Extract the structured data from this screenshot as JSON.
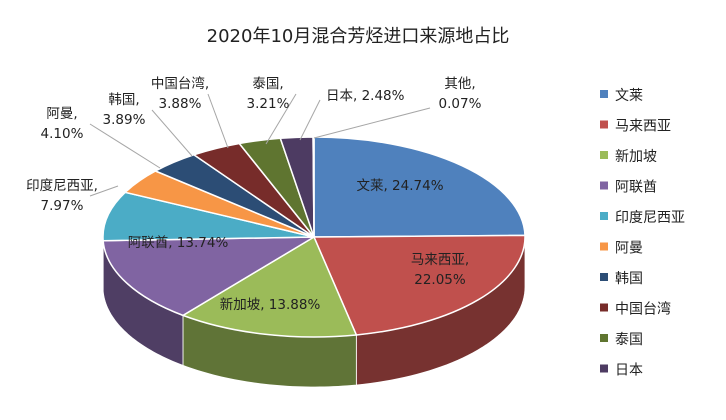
{
  "chart_data": {
    "type": "pie",
    "title": "2020年10月混合芳烃进口来源地占比",
    "categories": [
      "文莱",
      "马来西亚",
      "新加坡",
      "阿联酋",
      "印度尼西亚",
      "阿曼",
      "韩国",
      "中国台湾",
      "泰国",
      "日本",
      "其他"
    ],
    "values": [
      24.74,
      22.05,
      13.88,
      13.74,
      7.97,
      4.1,
      3.89,
      3.88,
      3.21,
      2.48,
      0.07
    ],
    "value_labels": [
      "24.74%",
      "22.05%",
      "13.88%",
      "13.74%",
      "7.97%",
      "4.10%",
      "3.89%",
      "3.88%",
      "3.21%",
      "2.48%",
      "0.07%"
    ],
    "colors": [
      "#4F81BD",
      "#C0504D",
      "#9BBB59",
      "#8064A2",
      "#4BACC6",
      "#F79646",
      "#2C4D75",
      "#772C2A",
      "#5F7530",
      "#4D3B62",
      "#276A7C"
    ],
    "legend_entries": [
      "文莱",
      "马来西亚",
      "新加坡",
      "阿联酋",
      "印度尼西亚",
      "阿曼",
      "韩国",
      "中国台湾",
      "泰国",
      "日本"
    ],
    "legend_position": "right",
    "style": "3d-pie"
  }
}
